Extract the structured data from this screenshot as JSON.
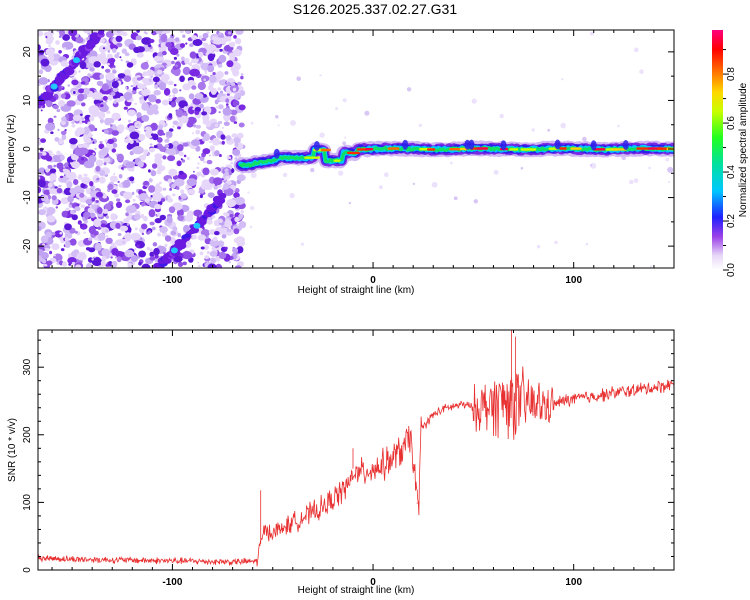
{
  "title": "S126.2025.337.02.27.G31",
  "colors": {
    "signal_line": "#e83030",
    "frame": "#000000",
    "background": "#ffffff"
  },
  "chart_data": [
    {
      "type": "heatmap",
      "xlabel": "Height of straight line (km)",
      "ylabel": "Frequency (Hz)",
      "xlim": [
        -167,
        150
      ],
      "ylim": [
        -24.5,
        24.5
      ],
      "xticks": [
        -100,
        0,
        100
      ],
      "yticks": [
        20,
        10,
        0,
        -10,
        -20
      ],
      "xtick_labels": [
        "-100",
        "0",
        "100"
      ],
      "ytick_labels": [
        "20",
        "10",
        "0",
        "-10",
        "-20"
      ],
      "colorbar": {
        "label": "Normalized spectral amplitude",
        "range": [
          0,
          0.98
        ],
        "ticks": [
          0.0,
          0.2,
          0.4,
          0.6,
          0.8
        ],
        "tick_labels": [
          "0.0",
          "0.2",
          "0.4",
          "0.6",
          "0.8"
        ]
      },
      "features": [
        {
          "name": "diagonal-trace-upper",
          "x": [
            -167,
            -135
          ],
          "y": [
            9,
            24.5
          ],
          "amplitude": 0.35
        },
        {
          "name": "diagonal-trace-lower",
          "x": [
            -107,
            -75
          ],
          "y": [
            -24.5,
            -10
          ],
          "amplitude": 0.3
        },
        {
          "name": "noise-region",
          "x": [
            -167,
            -65
          ],
          "amplitude": 0.1
        },
        {
          "name": "transition-ridge",
          "x": [
            -65,
            -20
          ],
          "y": [
            -3.5,
            -1.5
          ],
          "amplitude": 0.6
        },
        {
          "name": "main-ridge",
          "x": [
            -20,
            150
          ],
          "y": [
            0,
            0
          ],
          "amplitude": 0.9
        }
      ]
    },
    {
      "type": "line",
      "xlabel": "Height of straight line (km)",
      "ylabel": "SNR (10 * v/v)",
      "xlim": [
        -167,
        150
      ],
      "ylim": [
        0,
        355
      ],
      "xticks": [
        -100,
        0,
        100
      ],
      "yticks": [
        0,
        100,
        200,
        300
      ],
      "xtick_labels": [
        "-100",
        "0",
        "100"
      ],
      "ytick_labels": [
        "0",
        "100",
        "200",
        "300"
      ],
      "series": [
        {
          "name": "SNR",
          "x": [
            -167,
            -150,
            -130,
            -110,
            -90,
            -70,
            -58,
            -57,
            -54,
            -50,
            -45,
            -40,
            -35,
            -30,
            -25,
            -20,
            -15,
            -11,
            -10,
            -8,
            -5,
            0,
            5,
            10,
            15,
            19,
            22,
            23,
            24,
            26,
            30,
            35,
            40,
            45,
            50,
            55,
            60,
            65,
            70,
            75,
            80,
            85,
            90,
            95,
            100,
            110,
            120,
            130,
            140,
            150
          ],
          "values": [
            18,
            16,
            15,
            14,
            13,
            12,
            13,
            28,
            60,
            55,
            62,
            70,
            78,
            85,
            92,
            105,
            118,
            130,
            150,
            140,
            145,
            150,
            155,
            165,
            180,
            195,
            100,
            110,
            210,
            215,
            230,
            238,
            242,
            245,
            240,
            242,
            245,
            250,
            250,
            248,
            245,
            243,
            245,
            250,
            253,
            257,
            262,
            266,
            270,
            275
          ]
        }
      ]
    }
  ]
}
